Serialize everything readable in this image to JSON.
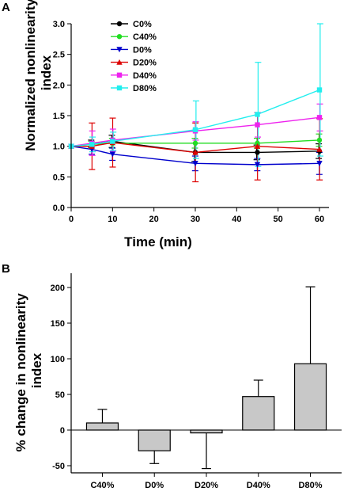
{
  "chart_data": [
    {
      "panel_label": "A",
      "type": "line",
      "xlabel": "Time (min)",
      "ylabel": "Normalized nonlinearity index",
      "xlim": [
        0,
        60
      ],
      "ylim": [
        0,
        3.0
      ],
      "xticks": [
        0,
        10,
        20,
        30,
        40,
        50,
        60
      ],
      "yticks": [
        "0.0",
        "0.5",
        "1.0",
        "1.5",
        "2.0",
        "2.5",
        "3.0"
      ],
      "legend_position": "top-left",
      "x": [
        0,
        5,
        10,
        30,
        45,
        60
      ],
      "series": [
        {
          "name": "C0%",
          "color": "#000000",
          "marker": "circle",
          "values": [
            1.0,
            1.04,
            1.08,
            0.9,
            0.9,
            0.92
          ],
          "errors": [
            0,
            0.06,
            0.1,
            0.15,
            0.12,
            0.12
          ]
        },
        {
          "name": "C40%",
          "color": "#22dd22",
          "marker": "circle",
          "values": [
            1.0,
            1.03,
            1.05,
            1.05,
            1.05,
            1.1
          ],
          "errors": [
            0,
            0.05,
            0.08,
            0.08,
            0.08,
            0.1
          ]
        },
        {
          "name": "D0%",
          "color": "#0000cc",
          "marker": "triangle-down",
          "values": [
            1.0,
            0.95,
            0.87,
            0.72,
            0.7,
            0.72
          ],
          "errors": [
            0,
            0.08,
            0.1,
            0.12,
            0.1,
            0.18
          ]
        },
        {
          "name": "D20%",
          "color": "#dd0000",
          "marker": "triangle-up",
          "values": [
            1.0,
            1.0,
            1.06,
            0.9,
            1.0,
            0.95
          ],
          "errors": [
            0,
            0.38,
            0.4,
            0.48,
            0.55,
            0.5
          ]
        },
        {
          "name": "D40%",
          "color": "#ee22ee",
          "marker": "square",
          "values": [
            1.0,
            1.05,
            1.1,
            1.25,
            1.35,
            1.47
          ],
          "errors": [
            0,
            0.2,
            0.18,
            0.15,
            0.2,
            0.22
          ]
        },
        {
          "name": "D80%",
          "color": "#22eeee",
          "marker": "square",
          "values": [
            1.0,
            1.03,
            1.08,
            1.27,
            1.52,
            1.92
          ],
          "errors": [
            0,
            0.12,
            0.15,
            0.47,
            0.85,
            1.08
          ]
        }
      ]
    },
    {
      "panel_label": "B",
      "type": "bar",
      "xlabel": "",
      "ylabel": "% change in nonlinearity index",
      "ylim": [
        -60,
        220
      ],
      "yticks": [
        "-50",
        "0",
        "50",
        "100",
        "150",
        "200"
      ],
      "categories": [
        "C40%",
        "D0%",
        "D20%",
        "D40%",
        "D80%"
      ],
      "values": [
        10,
        -29,
        -4,
        47,
        93
      ],
      "errors": [
        19,
        18,
        50,
        23,
        108
      ],
      "bar_color": "#c8c8c8"
    }
  ]
}
